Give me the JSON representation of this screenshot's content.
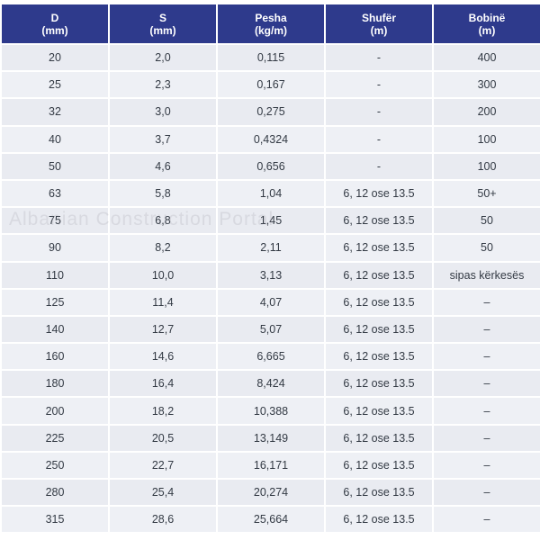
{
  "headers": [
    {
      "name": "D",
      "unit": "(mm)"
    },
    {
      "name": "S",
      "unit": "(mm)"
    },
    {
      "name": "Pesha",
      "unit": "(kg/m)"
    },
    {
      "name": "Shufër",
      "unit": "(m)"
    },
    {
      "name": "Bobinë",
      "unit": "(m)"
    }
  ],
  "rows": [
    [
      "20",
      "2,0",
      "0,115",
      "-",
      "400"
    ],
    [
      "25",
      "2,3",
      "0,167",
      "-",
      "300"
    ],
    [
      "32",
      "3,0",
      "0,275",
      "-",
      "200"
    ],
    [
      "40",
      "3,7",
      "0,4324",
      "-",
      "100"
    ],
    [
      "50",
      "4,6",
      "0,656",
      "-",
      "100"
    ],
    [
      "63",
      "5,8",
      "1,04",
      "6, 12 ose 13.5",
      "50+"
    ],
    [
      "75",
      "6,8",
      "1,45",
      "6, 12 ose 13.5",
      "50"
    ],
    [
      "90",
      "8,2",
      "2,11",
      "6, 12 ose 13.5",
      "50"
    ],
    [
      "110",
      "10,0",
      "3,13",
      "6, 12 ose 13.5",
      "sipas kërkesës"
    ],
    [
      "125",
      "11,4",
      "4,07",
      "6, 12 ose 13.5",
      "–"
    ],
    [
      "140",
      "12,7",
      "5,07",
      "6, 12 ose 13.5",
      "–"
    ],
    [
      "160",
      "14,6",
      "6,665",
      "6, 12 ose 13.5",
      "–"
    ],
    [
      "180",
      "16,4",
      "8,424",
      "6, 12 ose 13.5",
      "–"
    ],
    [
      "200",
      "18,2",
      "10,388",
      "6, 12 ose 13.5",
      "–"
    ],
    [
      "225",
      "20,5",
      "13,149",
      "6, 12 ose 13.5",
      "–"
    ],
    [
      "250",
      "22,7",
      "16,171",
      "6, 12 ose 13.5",
      "–"
    ],
    [
      "280",
      "25,4",
      "20,274",
      "6, 12 ose 13.5",
      "–"
    ],
    [
      "315",
      "28,6",
      "25,664",
      "6, 12 ose 13.5",
      "–"
    ]
  ],
  "watermark": "Albanian Construction Portal",
  "colors": {
    "header_bg": "#2e3a8c",
    "header_text": "#ffffff",
    "cell_bg": "#eef0f5",
    "cell_text": "#333a44"
  }
}
